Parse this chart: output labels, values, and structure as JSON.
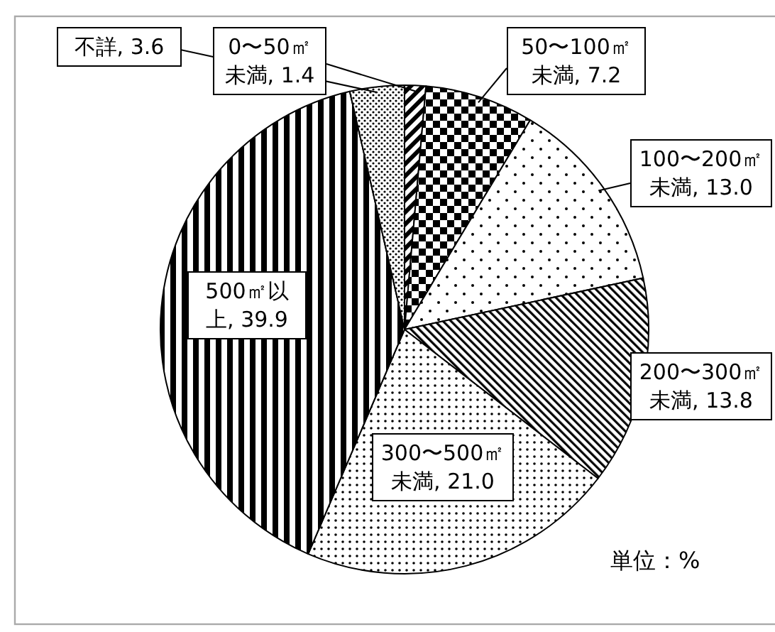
{
  "chart_data": {
    "type": "pie",
    "categories": [
      "0〜50㎡未満",
      "50〜100㎡未満",
      "100〜200㎡未満",
      "200〜300㎡未満",
      "300〜500㎡未満",
      "500㎡以上",
      "不詳"
    ],
    "values": [
      1.4,
      7.2,
      13.0,
      13.8,
      21.0,
      39.9,
      3.6
    ],
    "value_labels": [
      "1.4",
      "7.2",
      "13.0",
      "13.8",
      "21.0",
      "39.9",
      "3.6"
    ],
    "colors": [
      "#000000",
      "#000000",
      "#000000",
      "#000000",
      "#000000",
      "#000000",
      "#000000"
    ],
    "annotations": [
      "単位：%"
    ]
  }
}
